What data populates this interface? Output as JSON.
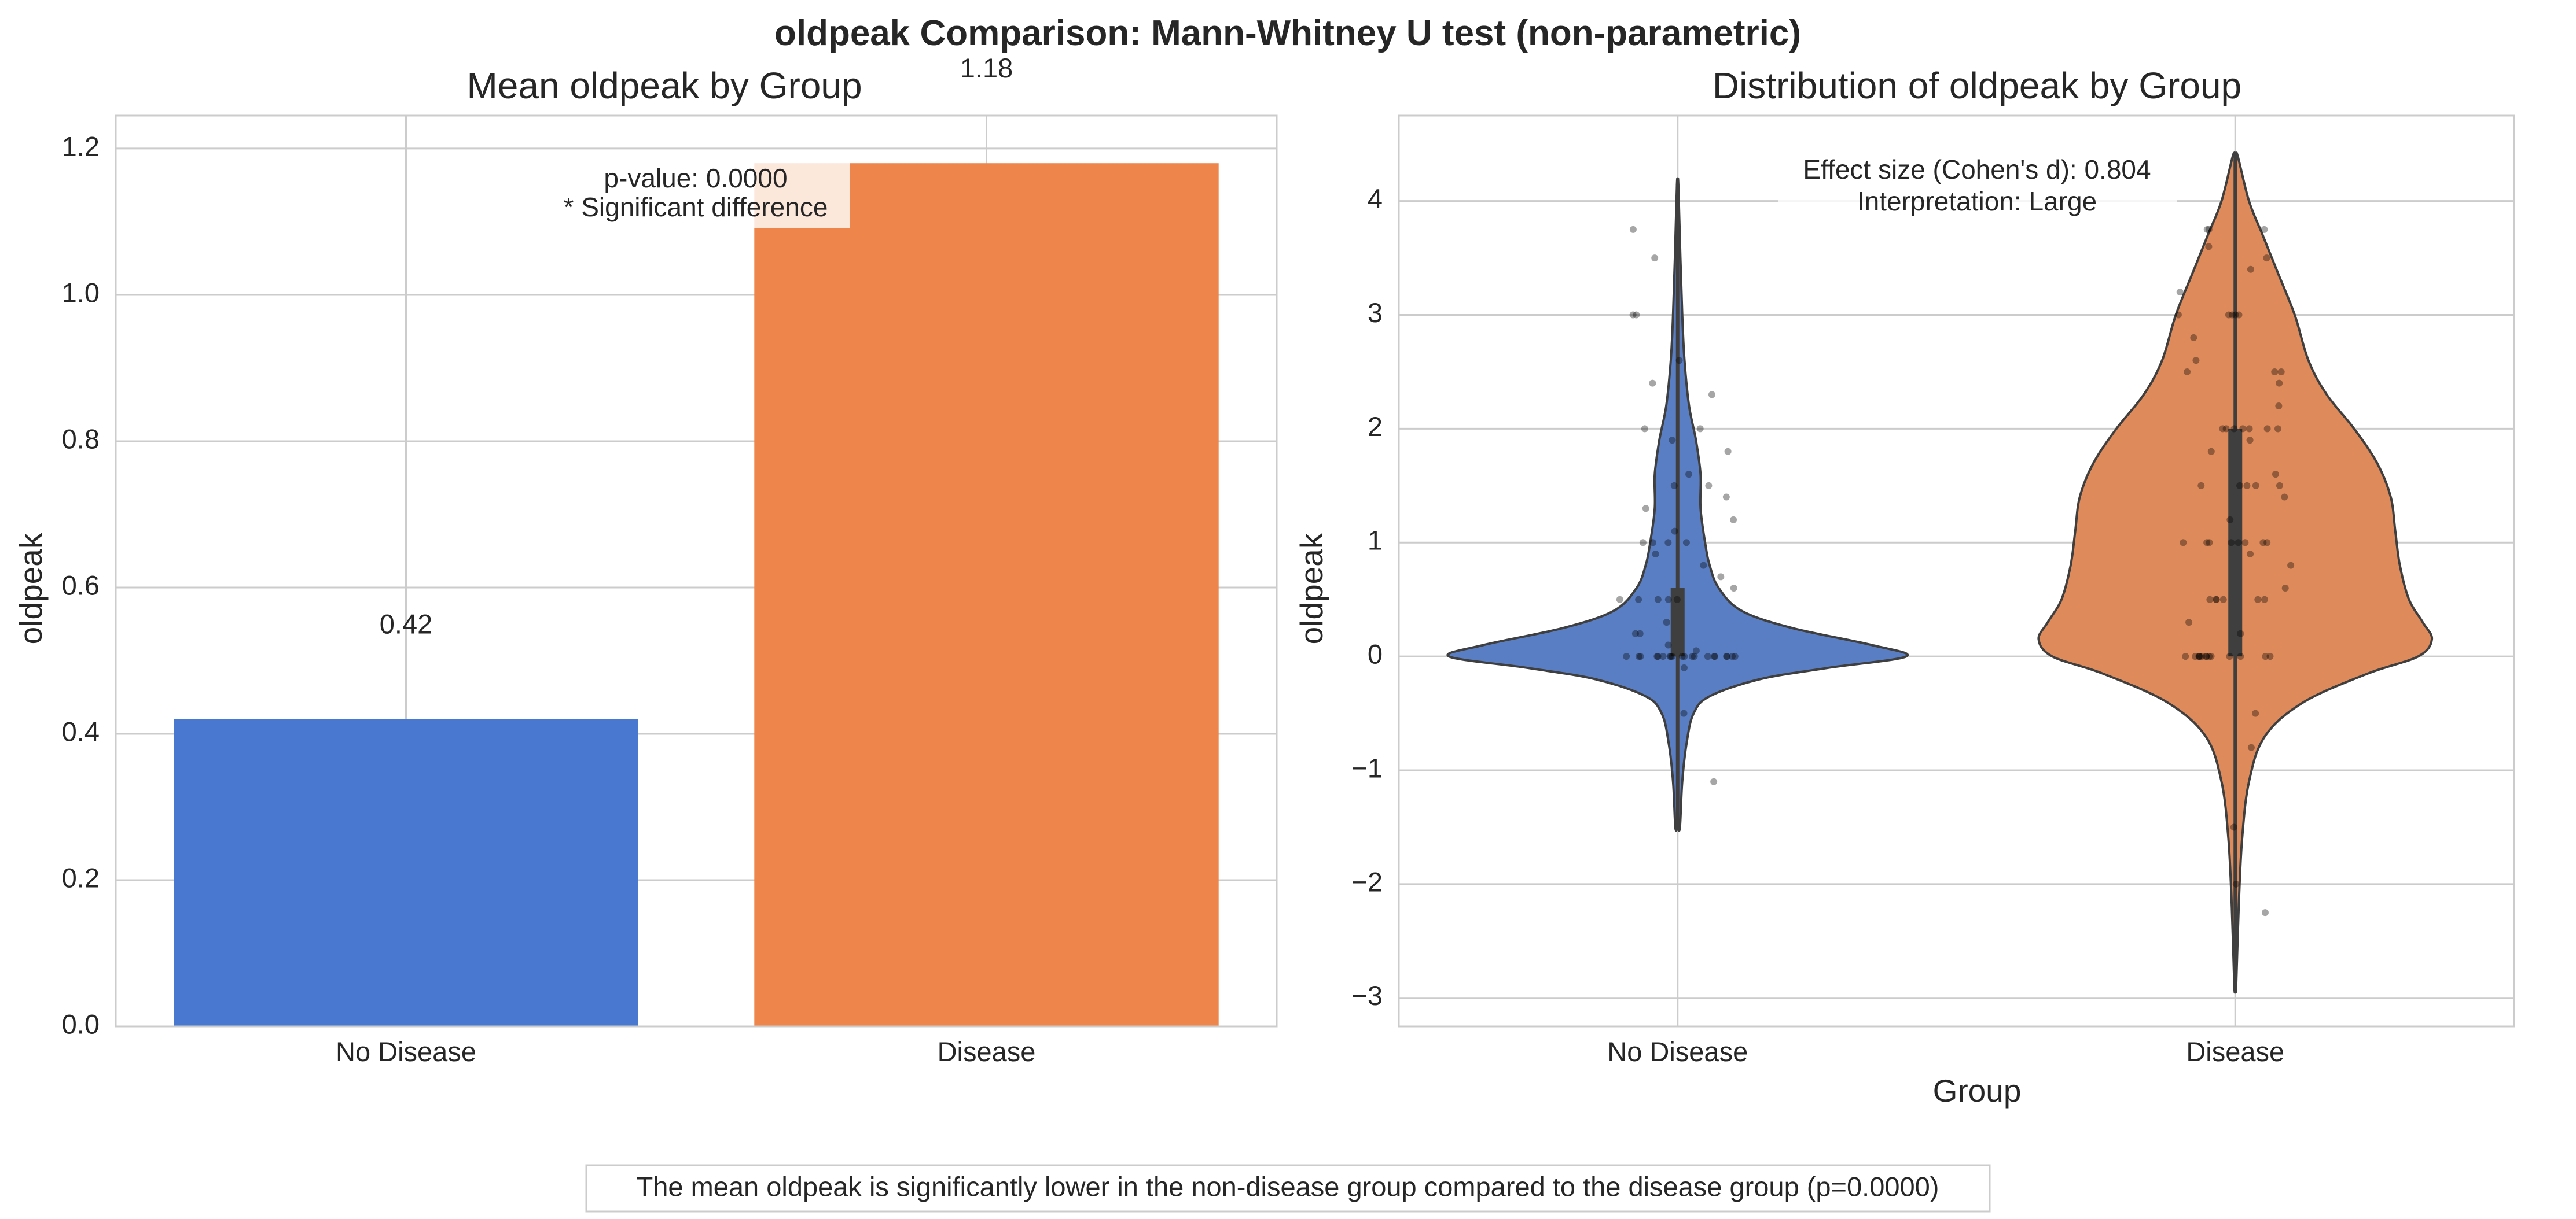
{
  "figure": {
    "suptitle": "oldpeak Comparison: Mann-Whitney U test (non-parametric)",
    "footer": "The mean oldpeak is significantly lower in the non-disease group compared to the disease group (p=0.0000)"
  },
  "colors": {
    "no_disease_bar": "#4878d0",
    "disease_bar": "#ee854a",
    "no_disease_violin": "#5a7ec4",
    "disease_violin": "#df8a5a",
    "grid": "#cccccc",
    "spine": "#cccccc",
    "points": "#000000"
  },
  "chart_data": [
    {
      "type": "bar",
      "title": "Mean oldpeak by Group",
      "xlabel": "",
      "ylabel": "oldpeak",
      "categories": [
        "No Disease",
        "Disease"
      ],
      "values": [
        0.42,
        1.18
      ],
      "value_labels": [
        "0.42",
        "1.18"
      ],
      "ylim": [
        0,
        1.245
      ],
      "yticks": [
        0.0,
        0.2,
        0.4,
        0.6,
        0.8,
        1.0,
        1.2
      ],
      "ytick_labels": [
        "0.0",
        "0.2",
        "0.4",
        "0.6",
        "0.8",
        "1.0",
        "1.2"
      ],
      "grid": true,
      "annotation": [
        "p-value: 0.0000",
        "* Significant difference"
      ]
    },
    {
      "type": "violin",
      "title": "Distribution of oldpeak by Group",
      "xlabel": "Group",
      "ylabel": "oldpeak",
      "categories": [
        "No Disease",
        "Disease"
      ],
      "ylim": [
        -3.25,
        4.75
      ],
      "yticks": [
        -3,
        -2,
        -1,
        0,
        1,
        2,
        3,
        4
      ],
      "ytick_labels": [
        "−3",
        "−2",
        "−1",
        "0",
        "1",
        "2",
        "3",
        "4"
      ],
      "grid": true,
      "annotation": [
        "Effect size (Cohen's d): 0.804",
        "Interpretation: Large"
      ],
      "series": [
        {
          "category": "No Disease",
          "range": [
            -1.5,
            4.15
          ],
          "iqr": [
            0,
            0.6
          ],
          "median": 0,
          "density": [
            [
              -1.5,
              0.01
            ],
            [
              -1.1,
              0.02
            ],
            [
              -0.75,
              0.04
            ],
            [
              -0.5,
              0.07
            ],
            [
              -0.35,
              0.14
            ],
            [
              -0.2,
              0.36
            ],
            [
              -0.1,
              0.66
            ],
            [
              0,
              1.0
            ],
            [
              0.1,
              0.85
            ],
            [
              0.25,
              0.5
            ],
            [
              0.4,
              0.28
            ],
            [
              0.6,
              0.18
            ],
            [
              0.8,
              0.14
            ],
            [
              1.0,
              0.12
            ],
            [
              1.3,
              0.1
            ],
            [
              1.6,
              0.1
            ],
            [
              1.9,
              0.08
            ],
            [
              2.2,
              0.05
            ],
            [
              2.6,
              0.03
            ],
            [
              3.0,
              0.02
            ],
            [
              3.5,
              0.012
            ],
            [
              4.15,
              0.003
            ]
          ],
          "points": [
            [
              0,
              0
            ],
            [
              0,
              0
            ],
            [
              0,
              0
            ],
            [
              0,
              0
            ],
            [
              0,
              0
            ],
            [
              0,
              0
            ],
            [
              0,
              0
            ],
            [
              0,
              0
            ],
            [
              0,
              0
            ],
            [
              0,
              0
            ],
            [
              0,
              0
            ],
            [
              0,
              0
            ],
            [
              0,
              0
            ],
            [
              0,
              0
            ],
            [
              0,
              0
            ],
            [
              0,
              0
            ],
            [
              0,
              0
            ],
            [
              0,
              0
            ],
            [
              0,
              0
            ],
            [
              0,
              0
            ],
            [
              0.1,
              -0.1
            ],
            [
              0.2,
              0.05
            ],
            [
              0.2,
              0.1
            ],
            [
              0.4,
              0.2
            ],
            [
              0.4,
              0.5
            ],
            [
              0.5,
              0.5
            ],
            [
              0.5,
              0.5
            ],
            [
              0.5,
              0.5
            ],
            [
              0.6,
              0.5
            ],
            [
              0.6,
              0.6
            ],
            [
              0.8,
              0.8
            ],
            [
              1.0,
              1.0
            ],
            [
              1.0,
              1.0
            ],
            [
              1.0,
              1.0
            ],
            [
              1.0,
              1.0
            ],
            [
              1.2,
              1.2
            ],
            [
              1.4,
              1.4
            ],
            [
              1.5,
              1.5
            ],
            [
              1.5,
              1.5
            ],
            [
              1.6,
              1.6
            ],
            [
              1.8,
              1.8
            ],
            [
              1.9,
              1.9
            ],
            [
              2.0,
              2.0
            ],
            [
              2.0,
              2.0
            ],
            [
              2.3,
              2.3
            ],
            [
              2.4,
              2.4
            ],
            [
              2.6,
              2.6
            ],
            [
              3.0,
              3.0
            ],
            [
              3.0,
              3.0
            ],
            [
              3.5,
              3.5
            ],
            [
              3.75,
              3.75
            ],
            [
              -1.1,
              -1.1
            ],
            [
              -0.5,
              -0.5
            ],
            [
              0.3,
              0.3
            ],
            [
              0.7,
              0.7
            ],
            [
              1.1,
              1.1
            ],
            [
              1.3,
              1.3
            ],
            [
              0.9,
              0.9
            ],
            [
              0.2,
              0.2
            ]
          ]
        },
        {
          "category": "Disease",
          "range": [
            -2.9,
            4.4
          ],
          "iqr": [
            0,
            2.0
          ],
          "median": 1.2,
          "density": [
            [
              -2.9,
              0.004
            ],
            [
              -2.2,
              0.015
            ],
            [
              -1.6,
              0.03
            ],
            [
              -1.1,
              0.06
            ],
            [
              -0.7,
              0.13
            ],
            [
              -0.4,
              0.3
            ],
            [
              -0.15,
              0.58
            ],
            [
              0,
              0.8
            ],
            [
              0.15,
              0.86
            ],
            [
              0.3,
              0.82
            ],
            [
              0.5,
              0.76
            ],
            [
              0.8,
              0.72
            ],
            [
              1.1,
              0.7
            ],
            [
              1.4,
              0.68
            ],
            [
              1.7,
              0.62
            ],
            [
              2.0,
              0.52
            ],
            [
              2.3,
              0.4
            ],
            [
              2.6,
              0.32
            ],
            [
              3.0,
              0.26
            ],
            [
              3.4,
              0.18
            ],
            [
              3.7,
              0.12
            ],
            [
              4.0,
              0.06
            ],
            [
              4.4,
              0.01
            ]
          ],
          "points": [
            [
              0,
              0
            ],
            [
              0,
              0
            ],
            [
              0,
              0
            ],
            [
              0,
              0
            ],
            [
              0,
              0
            ],
            [
              0,
              0
            ],
            [
              0,
              0
            ],
            [
              0,
              0
            ],
            [
              0,
              0
            ],
            [
              0,
              0
            ],
            [
              0,
              0
            ],
            [
              0,
              0
            ],
            [
              0,
              0
            ],
            [
              0,
              0
            ],
            [
              0.5,
              0.5
            ],
            [
              0.5,
              0.5
            ],
            [
              0.5,
              0.5
            ],
            [
              0.5,
              0.5
            ],
            [
              0.5,
              0.5
            ],
            [
              0.5,
              0.5
            ],
            [
              1,
              1
            ],
            [
              1,
              1
            ],
            [
              1,
              1
            ],
            [
              1,
              1
            ],
            [
              1,
              1
            ],
            [
              1,
              1
            ],
            [
              1,
              1
            ],
            [
              1,
              1
            ],
            [
              1.5,
              1.5
            ],
            [
              1.5,
              1.5
            ],
            [
              1.5,
              1.5
            ],
            [
              1.5,
              1.5
            ],
            [
              1.5,
              1.5
            ],
            [
              2,
              2
            ],
            [
              2,
              2
            ],
            [
              2,
              2
            ],
            [
              2,
              2
            ],
            [
              2,
              2
            ],
            [
              2,
              2
            ],
            [
              2,
              2
            ],
            [
              2.5,
              2.5
            ],
            [
              2.5,
              2.5
            ],
            [
              2.5,
              2.5
            ],
            [
              3,
              3
            ],
            [
              3,
              3
            ],
            [
              3,
              3
            ],
            [
              3,
              3
            ],
            [
              3,
              3
            ],
            [
              3.5,
              3.5
            ],
            [
              3.75,
              3.75
            ],
            [
              3.75,
              3.75
            ],
            [
              3.75,
              3.75
            ],
            [
              0.2,
              0.2
            ],
            [
              0.3,
              0.3
            ],
            [
              0.8,
              0.8
            ],
            [
              1.2,
              1.2
            ],
            [
              1.4,
              1.4
            ],
            [
              1.6,
              1.6
            ],
            [
              1.8,
              1.8
            ],
            [
              2.2,
              2.2
            ],
            [
              2.6,
              2.6
            ],
            [
              2.8,
              2.8
            ],
            [
              3.2,
              3.2
            ],
            [
              3.4,
              3.4
            ],
            [
              3.6,
              3.6
            ],
            [
              0.6,
              0.6
            ],
            [
              0.9,
              0.9
            ],
            [
              -0.5,
              -0.5
            ],
            [
              -0.8,
              -0.8
            ],
            [
              -1.5,
              -1.5
            ],
            [
              -2.25,
              -2.25
            ],
            [
              -2.0,
              -2.0
            ],
            [
              1.9,
              1.9
            ],
            [
              2.4,
              2.4
            ]
          ]
        }
      ]
    }
  ]
}
